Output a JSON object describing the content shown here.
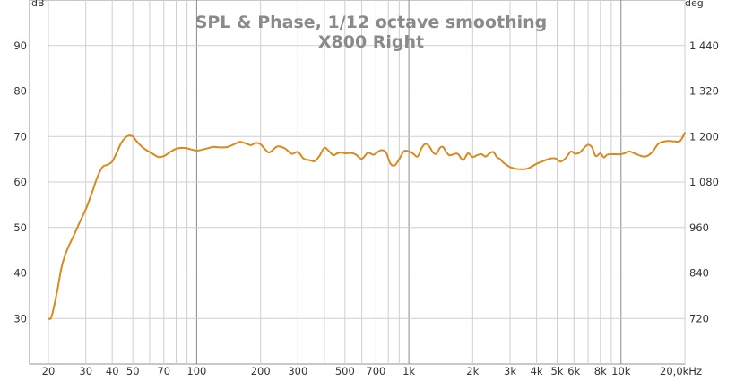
{
  "chart_data": {
    "type": "line",
    "title": "SPL & Phase, 1/12 octave smoothing",
    "subtitle": "X800 Right",
    "ylabel_left": "dB",
    "ylabel_right": "deg",
    "x_scale": "log",
    "xlim": [
      20,
      20000
    ],
    "ylim": [
      20,
      100
    ],
    "ylim_right": [
      600,
      1560
    ],
    "x_ticks": [
      {
        "value": 20,
        "label": "20"
      },
      {
        "value": 30,
        "label": "30"
      },
      {
        "value": 40,
        "label": "40"
      },
      {
        "value": 50,
        "label": "50"
      },
      {
        "value": 70,
        "label": "70"
      },
      {
        "value": 100,
        "label": "100"
      },
      {
        "value": 200,
        "label": "200"
      },
      {
        "value": 300,
        "label": "300"
      },
      {
        "value": 500,
        "label": "500"
      },
      {
        "value": 700,
        "label": "700"
      },
      {
        "value": 1000,
        "label": "1k"
      },
      {
        "value": 2000,
        "label": "2k"
      },
      {
        "value": 3000,
        "label": "3k"
      },
      {
        "value": 4000,
        "label": "4k"
      },
      {
        "value": 5000,
        "label": "5k"
      },
      {
        "value": 6000,
        "label": "6k"
      },
      {
        "value": 8000,
        "label": "8k"
      },
      {
        "value": 10000,
        "label": "10k"
      },
      {
        "value": 20000,
        "label": "20,0kHz"
      }
    ],
    "y_ticks": [
      {
        "value": 30,
        "label": "30"
      },
      {
        "value": 40,
        "label": "40"
      },
      {
        "value": 50,
        "label": "50"
      },
      {
        "value": 60,
        "label": "60"
      },
      {
        "value": 70,
        "label": "70"
      },
      {
        "value": 80,
        "label": "80"
      },
      {
        "value": 90,
        "label": "90"
      }
    ],
    "y_right_ticks": [
      {
        "value": 720,
        "label": "720"
      },
      {
        "value": 840,
        "label": "840"
      },
      {
        "value": 960,
        "label": "960"
      },
      {
        "value": 1080,
        "label": "1 080"
      },
      {
        "value": 1200,
        "label": "1 200"
      },
      {
        "value": 1320,
        "label": "1 320"
      },
      {
        "value": 1440,
        "label": "1 440"
      }
    ],
    "grid": true,
    "series": [
      {
        "color": "#d98a1e",
        "x": [
          20,
          20.5,
          21,
          22,
          23,
          24,
          25,
          26.5,
          28,
          30,
          32,
          34,
          36,
          38,
          40,
          42,
          44,
          46,
          48,
          50,
          52,
          55,
          58,
          62,
          66,
          70,
          75,
          80,
          85,
          90,
          100,
          110,
          120,
          130,
          140,
          150,
          160,
          170,
          180,
          190,
          200,
          210,
          220,
          240,
          260,
          280,
          300,
          320,
          340,
          360,
          380,
          400,
          420,
          440,
          460,
          480,
          500,
          530,
          560,
          600,
          640,
          680,
          700,
          740,
          780,
          820,
          860,
          900,
          950,
          1000,
          1050,
          1100,
          1150,
          1200,
          1250,
          1300,
          1350,
          1400,
          1450,
          1500,
          1550,
          1600,
          1700,
          1800,
          1900,
          2000,
          2100,
          2200,
          2300,
          2400,
          2500,
          2600,
          2700,
          2800,
          3000,
          3200,
          3400,
          3600,
          3800,
          4000,
          4300,
          4600,
          4900,
          5200,
          5500,
          5800,
          6100,
          6400,
          6700,
          7000,
          7300,
          7600,
          8000,
          8300,
          8600,
          9000,
          9500,
          10000,
          10500,
          11000,
          12000,
          13000,
          14000,
          15000,
          16000,
          17000,
          18000,
          19000,
          20000
        ],
        "values": [
          30,
          30,
          31.5,
          36,
          41,
          44,
          46,
          48.5,
          51,
          54,
          57.5,
          61,
          63.3,
          63.8,
          64.5,
          66.5,
          68.5,
          69.7,
          70.2,
          70,
          69,
          67.8,
          67,
          66.2,
          65.5,
          65.7,
          66.6,
          67.3,
          67.5,
          67.4,
          66.9,
          67.3,
          67.7,
          67.6,
          67.7,
          68.3,
          68.8,
          68.5,
          68.1,
          68.6,
          68.3,
          67.2,
          66.5,
          67.8,
          67.4,
          66.2,
          66.6,
          65.1,
          64.8,
          64.6,
          65.8,
          67.5,
          66.8,
          65.9,
          66.3,
          66.5,
          66.3,
          66.4,
          66.1,
          65.1,
          66.4,
          66,
          66.3,
          67,
          66.5,
          64,
          63.7,
          65,
          66.8,
          66.7,
          66.2,
          65.6,
          67.5,
          68.4,
          67.8,
          66.5,
          66.2,
          67.5,
          67.7,
          66.6,
          65.9,
          66,
          66.2,
          64.8,
          66.3,
          65.5,
          65.9,
          66.1,
          65.6,
          66.3,
          66.6,
          65.5,
          65,
          64.2,
          63.3,
          62.9,
          62.8,
          62.9,
          63.4,
          64,
          64.6,
          65.1,
          65.2,
          64.5,
          65.3,
          66.7,
          66.2,
          66.5,
          67.5,
          68.2,
          67.6,
          65.7,
          66.3,
          65.4,
          66,
          66.1,
          66.1,
          66.1,
          66.4,
          66.7,
          66,
          65.6,
          66.5,
          68.4,
          68.9,
          69,
          68.9,
          69,
          70.8
        ]
      }
    ]
  }
}
